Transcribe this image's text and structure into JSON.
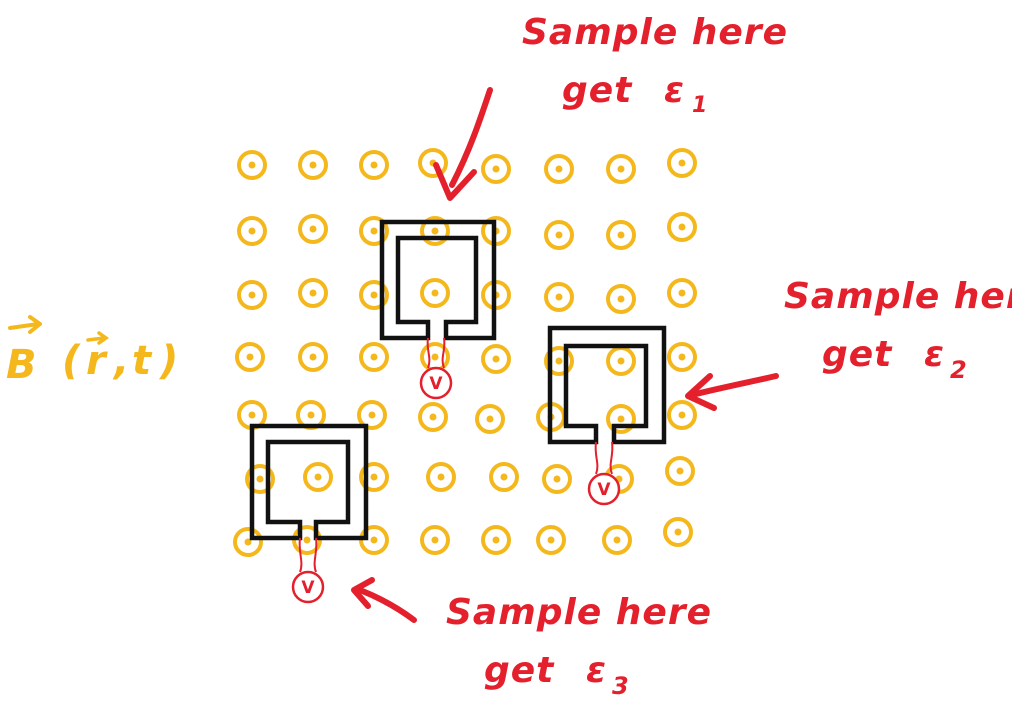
{
  "colors": {
    "field": "#f5b81c",
    "annotation": "#e3202c",
    "loop": "#111111",
    "background": "#ffffff"
  },
  "field_label": "B(r,t)",
  "field_symbol": "B",
  "field_args_open": "(",
  "field_args_r": "r",
  "field_args_sep": ",",
  "field_args_t": "t",
  "field_args_close": ")",
  "voltmeter_symbol": "V",
  "annotations": [
    {
      "line1": "Sample here",
      "line2_prefix": "get",
      "symbol": "ε",
      "subscript": "1"
    },
    {
      "line1": "Sample here",
      "line2_prefix": "get",
      "symbol": "ε",
      "subscript": "2"
    },
    {
      "line1": "Sample here",
      "line2_prefix": "get",
      "symbol": "ε",
      "subscript": "3"
    }
  ],
  "field_grid": {
    "rows": 7,
    "cols": 8,
    "direction": "out-of-page"
  },
  "loops": [
    {
      "name": "loop-1",
      "emf": "ε1"
    },
    {
      "name": "loop-2",
      "emf": "ε2"
    },
    {
      "name": "loop-3",
      "emf": "ε3"
    }
  ]
}
